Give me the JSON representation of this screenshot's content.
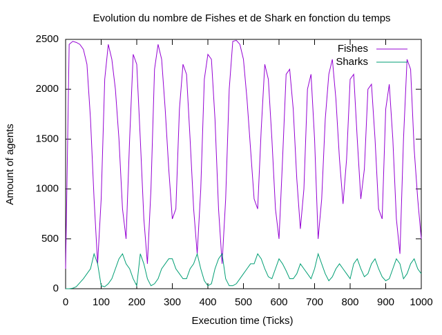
{
  "chart_data": {
    "type": "line",
    "title": "Evolution du nombre de Fishes et de Shark en fonction du temps",
    "x_label": "Execution time (Ticks)",
    "y_label": "Amount of agents",
    "x": [
      0,
      10,
      20,
      30,
      40,
      50,
      60,
      70,
      80,
      90,
      100,
      110,
      120,
      130,
      140,
      150,
      160,
      170,
      180,
      190,
      200,
      210,
      220,
      230,
      240,
      250,
      260,
      270,
      280,
      290,
      300,
      310,
      320,
      330,
      340,
      350,
      360,
      370,
      380,
      390,
      400,
      410,
      420,
      430,
      440,
      450,
      460,
      470,
      480,
      490,
      500,
      510,
      520,
      530,
      540,
      550,
      560,
      570,
      580,
      590,
      600,
      610,
      620,
      630,
      640,
      650,
      660,
      670,
      680,
      690,
      700,
      710,
      720,
      730,
      740,
      750,
      760,
      770,
      780,
      790,
      800,
      810,
      820,
      830,
      840,
      850,
      860,
      870,
      880,
      890,
      900,
      910,
      920,
      930,
      940,
      950,
      960,
      970,
      980,
      990,
      1000
    ],
    "series": [
      {
        "name": "Fishes",
        "color": "#9400d3",
        "values": [
          200,
          2450,
          2480,
          2470,
          2450,
          2400,
          2250,
          1700,
          900,
          250,
          900,
          2100,
          2450,
          2300,
          2000,
          1500,
          800,
          500,
          1500,
          2350,
          2250,
          1500,
          700,
          250,
          1000,
          2200,
          2450,
          2300,
          1800,
          1200,
          700,
          800,
          1800,
          2250,
          2150,
          1500,
          800,
          350,
          1000,
          2100,
          2350,
          2300,
          1700,
          800,
          250,
          900,
          2000,
          2480,
          2490,
          2450,
          2300,
          1900,
          1400,
          900,
          800,
          1600,
          2250,
          2100,
          1500,
          800,
          500,
          1300,
          2150,
          2200,
          1800,
          1100,
          600,
          1000,
          2000,
          2150,
          1500,
          500,
          900,
          1700,
          2150,
          2300,
          1900,
          1300,
          850,
          1300,
          2100,
          2150,
          1500,
          900,
          1200,
          2000,
          2050,
          1500,
          800,
          700,
          1800,
          2050,
          1500,
          700,
          350,
          1500,
          2300,
          2200,
          1400,
          900,
          500
        ]
      },
      {
        "name": "Sharks",
        "color": "#009e73",
        "values": [
          0,
          0,
          5,
          20,
          60,
          100,
          150,
          200,
          350,
          250,
          30,
          20,
          50,
          100,
          200,
          300,
          350,
          250,
          200,
          100,
          30,
          350,
          250,
          100,
          30,
          50,
          100,
          200,
          250,
          300,
          300,
          200,
          150,
          100,
          100,
          200,
          250,
          350,
          200,
          80,
          30,
          50,
          200,
          300,
          350,
          100,
          30,
          30,
          50,
          100,
          150,
          200,
          250,
          250,
          350,
          300,
          200,
          120,
          100,
          200,
          300,
          250,
          180,
          100,
          100,
          150,
          250,
          200,
          150,
          100,
          200,
          350,
          250,
          150,
          80,
          120,
          200,
          250,
          200,
          150,
          100,
          250,
          300,
          200,
          120,
          150,
          250,
          300,
          200,
          120,
          80,
          100,
          200,
          300,
          250,
          100,
          150,
          250,
          300,
          200,
          150
        ]
      }
    ],
    "xlim": [
      0,
      1000
    ],
    "xticks": [
      0,
      100,
      200,
      300,
      400,
      500,
      600,
      700,
      800,
      900,
      1000
    ],
    "ylim": [
      0,
      2500
    ],
    "yticks": [
      0,
      500,
      1000,
      1500,
      2000,
      2500
    ],
    "grid": false,
    "legend": "top-right"
  }
}
